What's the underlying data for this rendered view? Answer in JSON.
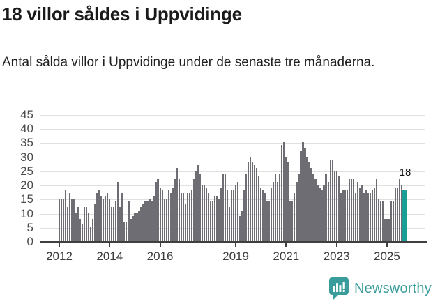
{
  "header": {
    "title": "18 villor såldes i Uppvidinge",
    "subtitle": "Antal sålda villor i Uppvidinge under de senaste tre månaderna."
  },
  "footer": {
    "brand": "Newsworthy"
  },
  "colors": {
    "bar": "#6f6d74",
    "highlight": "#1b9e97",
    "grid": "#e0e0e0",
    "axis": "#3f3f3f",
    "y_label": "#4b4b4b",
    "x_label": "#3c3c3c",
    "annotation": "#111111",
    "brand_teal": "#3a9d9b",
    "title_text": "#1a1a1a"
  },
  "chart_data": {
    "type": "bar",
    "title": "18 villor såldes i Uppvidinge",
    "subtitle": "Antal sålda villor i Uppvidinge under de senaste tre månaderna.",
    "frequency": "monthly",
    "x_start_month": "2012-01",
    "x_end_month": "2025-09",
    "ylim": [
      0,
      45
    ],
    "grid": "horizontal",
    "legend": "none",
    "y_tick_labels": [
      "0",
      "5",
      "10",
      "15",
      "20",
      "25",
      "30",
      "35",
      "40",
      "45"
    ],
    "x_tick_labels": [
      "2012",
      "2014",
      "2016",
      "2019",
      "2021",
      "2023",
      "2025"
    ],
    "x_tick_year_offsets": [
      0,
      2,
      4,
      7,
      9,
      11,
      13
    ],
    "values": [
      15,
      15,
      15,
      18,
      12,
      17,
      15,
      15,
      10,
      12,
      8,
      6,
      12,
      12,
      10,
      5,
      8,
      13,
      17,
      18,
      16,
      15,
      16,
      17,
      15,
      12,
      12,
      14,
      21,
      12,
      17,
      7,
      7,
      14,
      8,
      9,
      10,
      10,
      11,
      12,
      13,
      14,
      14,
      15,
      14,
      16,
      21,
      22,
      19,
      18,
      15,
      15,
      18,
      17,
      19,
      22,
      26,
      22,
      17,
      17,
      13,
      17,
      17,
      18,
      22,
      25,
      27,
      24,
      20,
      20,
      19,
      17,
      14,
      14,
      16,
      16,
      15,
      19,
      24,
      24,
      18,
      12,
      18,
      18,
      20,
      21,
      9,
      11,
      18,
      24,
      28,
      30,
      28,
      27,
      26,
      23,
      19,
      18,
      17,
      14,
      14,
      19,
      21,
      24,
      21,
      24,
      34,
      35,
      30,
      28,
      14,
      14,
      17,
      21,
      24,
      32,
      35,
      33,
      30,
      28,
      26,
      24,
      22,
      20,
      19,
      18,
      20,
      24,
      21,
      29,
      29,
      25,
      25,
      23,
      17,
      18,
      18,
      18,
      22,
      22,
      22,
      17,
      21,
      19,
      20,
      17,
      18,
      17,
      17,
      18,
      19,
      22,
      15,
      14,
      14,
      8,
      8,
      8,
      14,
      14,
      19,
      19,
      22,
      20,
      18
    ],
    "highlight_last": true,
    "annotation_label": "18",
    "annotation_value": 18
  }
}
